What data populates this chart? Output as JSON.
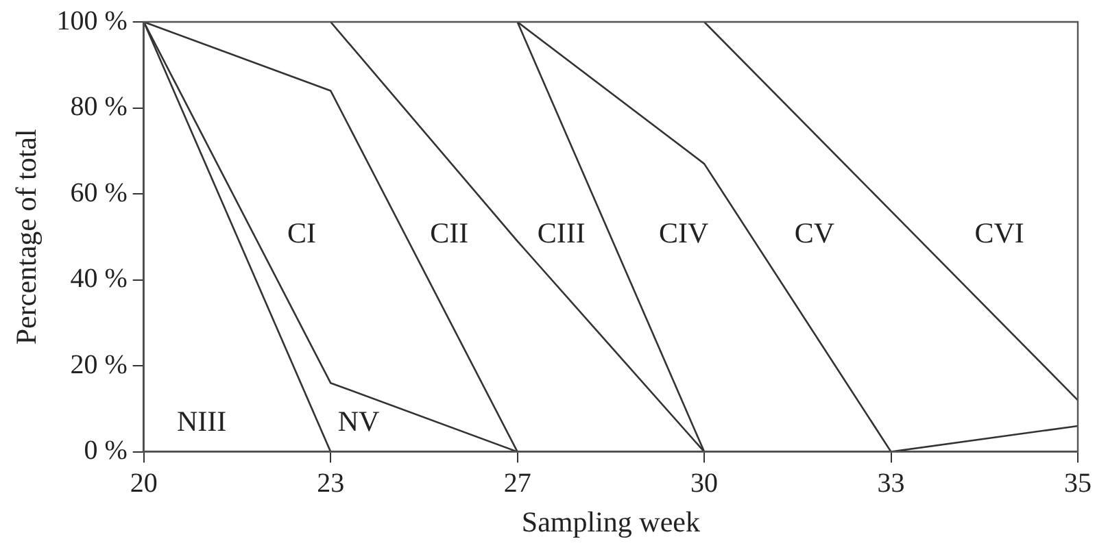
{
  "chart_data": {
    "type": "line",
    "xlabel": "Sampling week",
    "ylabel": "Percentage of total",
    "categories": [
      "20",
      "23",
      "27",
      "30",
      "33",
      "35"
    ],
    "series": [
      {
        "color": "#333333",
        "values": [
          100,
          0,
          null,
          null,
          null,
          null
        ]
      },
      {
        "color": "#333333",
        "values": [
          100,
          16,
          0,
          null,
          null,
          null
        ]
      },
      {
        "color": "#333333",
        "values": [
          100,
          84,
          0,
          null,
          null,
          null
        ]
      },
      {
        "color": "#333333",
        "values": [
          null,
          100,
          49,
          0,
          null,
          null
        ]
      },
      {
        "color": "#333333",
        "values": [
          null,
          null,
          100,
          0,
          null,
          null
        ]
      },
      {
        "color": "#333333",
        "values": [
          null,
          null,
          100,
          67,
          0,
          null
        ]
      },
      {
        "color": "#333333",
        "values": [
          null,
          null,
          null,
          100,
          56,
          12
        ]
      },
      {
        "color": "#333333",
        "values": [
          null,
          null,
          null,
          null,
          0,
          6
        ]
      }
    ],
    "ylim": [
      0,
      100
    ],
    "yticks": [
      {
        "value": 0,
        "label": "0 %"
      },
      {
        "value": 20,
        "label": "20 %"
      },
      {
        "value": 40,
        "label": "40 %"
      },
      {
        "value": 60,
        "label": "60 %"
      },
      {
        "value": 80,
        "label": "80 %"
      },
      {
        "value": 100,
        "label": "100 %"
      }
    ],
    "annotations": [
      "NIII",
      "NV",
      "CI",
      "CII",
      "CIII",
      "CIV",
      "CV",
      "CVI"
    ],
    "grid": false,
    "legend": false,
    "marker": "none",
    "line_style": "solid"
  }
}
